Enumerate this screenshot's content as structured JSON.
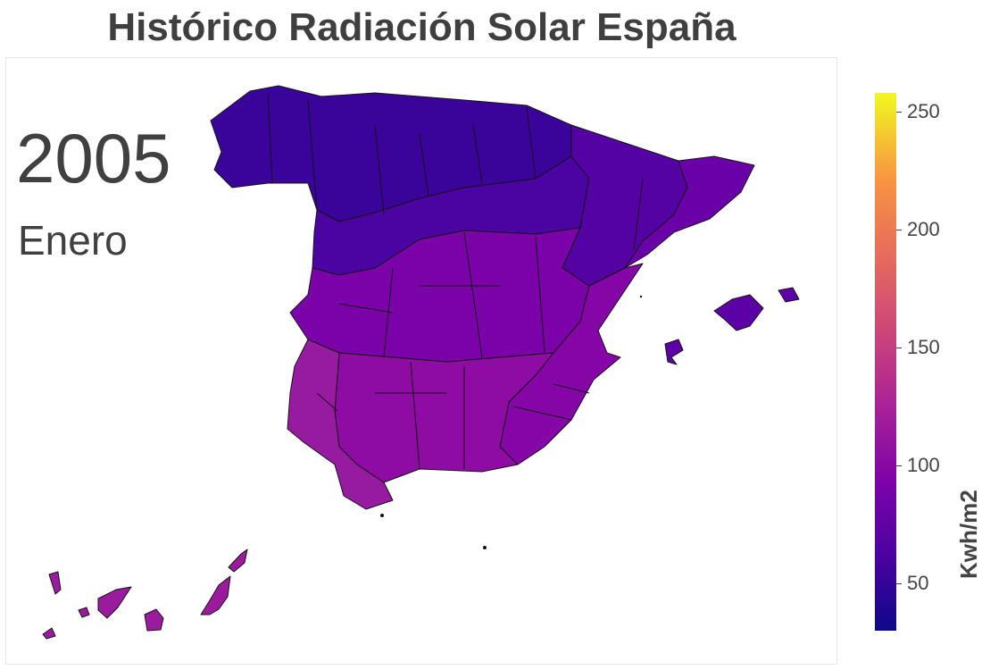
{
  "title": "Histórico Radiación Solar España",
  "year": "2005",
  "month": "Enero",
  "colorbar": {
    "title": "Kwh/m2",
    "range": [
      30,
      258
    ],
    "colorscale": "plasma",
    "colors": [
      "#0d0887",
      "#4c02a1",
      "#7e03a8",
      "#a92395",
      "#cc4778",
      "#e66c5c",
      "#f89540",
      "#f0f921"
    ],
    "ticks": [
      {
        "value": 50,
        "label": "50"
      },
      {
        "value": 100,
        "label": "100"
      },
      {
        "value": 150,
        "label": "150"
      },
      {
        "value": 200,
        "label": "200"
      },
      {
        "value": 250,
        "label": "250"
      }
    ]
  },
  "regions": {
    "north": {
      "color": "#3a049a",
      "value": 58
    },
    "northcentral": {
      "color": "#4b03a1",
      "value": 68
    },
    "northeast": {
      "color": "#5402a3",
      "value": 72
    },
    "catalonia": {
      "color": "#6a00a8",
      "value": 82
    },
    "central": {
      "color": "#7a02a8",
      "value": 90
    },
    "east": {
      "color": "#8505a7",
      "value": 94
    },
    "south": {
      "color": "#8e0ca4",
      "value": 98
    },
    "southwest": {
      "color": "#961ba0",
      "value": 102
    },
    "baleares": {
      "color": "#5c01a6",
      "value": 76
    },
    "canarias": {
      "color": "#9a1b9e",
      "value": 104
    }
  }
}
